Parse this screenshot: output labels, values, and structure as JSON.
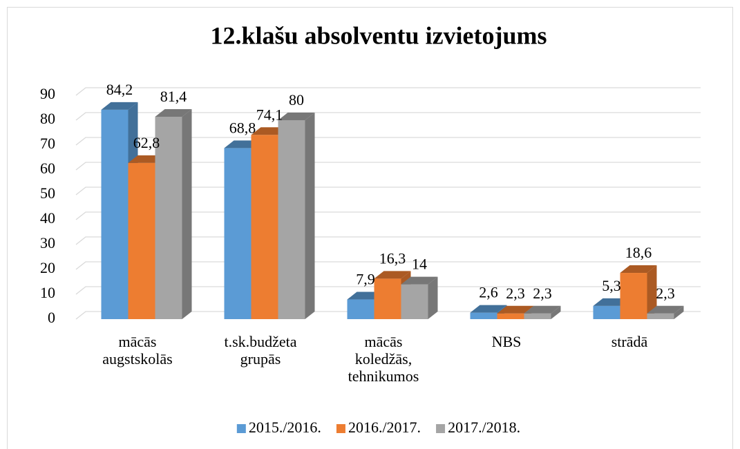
{
  "chart_data": {
    "type": "bar3d",
    "title": "12.klašu absolventu izvietojums",
    "categories": [
      "mācās augstskolās",
      "t.sk.budžeta grupās",
      "mācās koledžās, tehnikumos",
      "NBS",
      "strādā"
    ],
    "series": [
      {
        "name": "2015./2016.",
        "color": "#5b9bd5",
        "values": [
          84.2,
          68.8,
          7.9,
          2.6,
          5.3
        ],
        "value_labels": [
          "84,2",
          "68,8",
          "7,9",
          "2,6",
          "5,3"
        ]
      },
      {
        "name": "2016./2017.",
        "color": "#ed7d31",
        "values": [
          62.8,
          74.1,
          16.3,
          2.3,
          18.6
        ],
        "value_labels": [
          "62,8",
          "74,1",
          "16,3",
          "2,3",
          "18,6"
        ]
      },
      {
        "name": "2017./2018.",
        "color": "#a5a5a5",
        "values": [
          81.4,
          80,
          14,
          2.3,
          2.3
        ],
        "value_labels": [
          "81,4",
          "80",
          "14",
          "2,3",
          "2,3"
        ]
      }
    ],
    "ylim": [
      0,
      90
    ],
    "yticks": [
      0,
      10,
      20,
      30,
      40,
      50,
      60,
      70,
      80,
      90
    ],
    "grid": true,
    "legend": "bottom"
  }
}
